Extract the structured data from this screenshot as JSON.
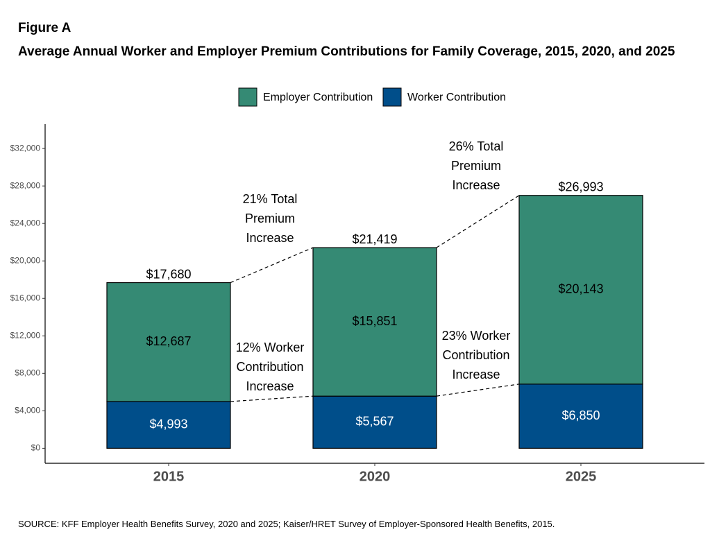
{
  "chart_data": {
    "type": "stacked_bar",
    "figure_label": "Figure A",
    "title": "Average Annual Worker and Employer Premium Contributions for Family Coverage, 2015, 2020, and 2025",
    "source": "SOURCE: KFF Employer Health Benefits Survey, 2020 and 2025; Kaiser/HRET Survey of Employer-Sponsored Health Benefits, 2015.",
    "categories": [
      "2015",
      "2020",
      "2025"
    ],
    "series": [
      {
        "name": "Employer Contribution",
        "color": "#358a74",
        "values": [
          12687,
          15851,
          20143
        ],
        "value_labels": [
          "$12,687",
          "$15,851",
          "$20,143"
        ]
      },
      {
        "name": "Worker Contribution",
        "color": "#004e8a",
        "values": [
          4993,
          5567,
          6850
        ],
        "value_labels": [
          "$4,993",
          "$5,567",
          "$6,850"
        ]
      }
    ],
    "totals": {
      "values": [
        17680,
        21419,
        26993
      ],
      "value_labels": [
        "$17,680",
        "$21,419",
        "$26,993"
      ]
    },
    "annotations": [
      {
        "lines": [
          "21% Total",
          "Premium",
          "Increase"
        ]
      },
      {
        "lines": [
          "12% Worker",
          "Contribution",
          "Increase"
        ]
      },
      {
        "lines": [
          "26% Total",
          "Premium",
          "Increase"
        ]
      },
      {
        "lines": [
          "23% Worker",
          "Contribution",
          "Increase"
        ]
      }
    ],
    "ylim": [
      -1600,
      34600
    ],
    "yticks": [
      {
        "value": 0,
        "label": "$0"
      },
      {
        "value": 4000,
        "label": "$4,000"
      },
      {
        "value": 8000,
        "label": "$8,000"
      },
      {
        "value": 12000,
        "label": "$12,000"
      },
      {
        "value": 16000,
        "label": "$16,000"
      },
      {
        "value": 20000,
        "label": "$20,000"
      },
      {
        "value": 24000,
        "label": "$24,000"
      },
      {
        "value": 28000,
        "label": "$28,000"
      },
      {
        "value": 32000,
        "label": "$32,000"
      }
    ],
    "grid": false,
    "legend_position": "top"
  }
}
